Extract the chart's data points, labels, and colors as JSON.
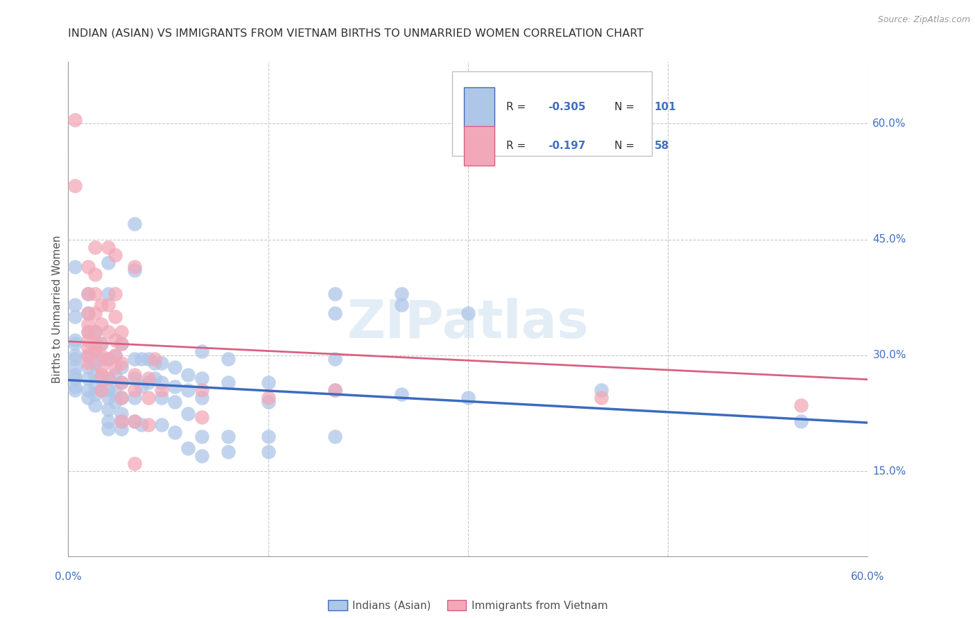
{
  "title": "INDIAN (ASIAN) VS IMMIGRANTS FROM VIETNAM BIRTHS TO UNMARRIED WOMEN CORRELATION CHART",
  "source": "Source: ZipAtlas.com",
  "ylabel": "Births to Unmarried Women",
  "y_ticks_right": [
    "60.0%",
    "45.0%",
    "30.0%",
    "15.0%"
  ],
  "y_tick_vals": [
    0.6,
    0.45,
    0.3,
    0.15
  ],
  "xlim": [
    0.0,
    0.6
  ],
  "ylim": [
    0.04,
    0.68
  ],
  "blue_color": "#aec6e8",
  "blue_line_color": "#3b6bbf",
  "pink_color": "#f2a8b8",
  "pink_line_color": "#d96080",
  "grid_color": "#c8c8c8",
  "title_color": "#303030",
  "axis_label_color": "#4070c0",
  "watermark": "ZIPatlas",
  "R_blue": -0.305,
  "N_blue": 101,
  "R_pink": -0.197,
  "N_pink": 58,
  "blue_intercept": 0.268,
  "blue_slope": -0.092,
  "pink_intercept": 0.318,
  "pink_slope": -0.082,
  "blue_points": [
    [
      0.005,
      0.415
    ],
    [
      0.005,
      0.365
    ],
    [
      0.005,
      0.35
    ],
    [
      0.005,
      0.32
    ],
    [
      0.005,
      0.315
    ],
    [
      0.005,
      0.3
    ],
    [
      0.005,
      0.295
    ],
    [
      0.005,
      0.285
    ],
    [
      0.005,
      0.275
    ],
    [
      0.005,
      0.27
    ],
    [
      0.005,
      0.26
    ],
    [
      0.005,
      0.255
    ],
    [
      0.015,
      0.38
    ],
    [
      0.015,
      0.355
    ],
    [
      0.015,
      0.33
    ],
    [
      0.015,
      0.3
    ],
    [
      0.015,
      0.285
    ],
    [
      0.015,
      0.27
    ],
    [
      0.015,
      0.255
    ],
    [
      0.015,
      0.245
    ],
    [
      0.02,
      0.33
    ],
    [
      0.02,
      0.31
    ],
    [
      0.02,
      0.29
    ],
    [
      0.02,
      0.275
    ],
    [
      0.02,
      0.26
    ],
    [
      0.02,
      0.25
    ],
    [
      0.02,
      0.235
    ],
    [
      0.025,
      0.315
    ],
    [
      0.025,
      0.295
    ],
    [
      0.025,
      0.27
    ],
    [
      0.025,
      0.255
    ],
    [
      0.03,
      0.42
    ],
    [
      0.03,
      0.38
    ],
    [
      0.03,
      0.295
    ],
    [
      0.03,
      0.27
    ],
    [
      0.03,
      0.255
    ],
    [
      0.03,
      0.245
    ],
    [
      0.03,
      0.23
    ],
    [
      0.03,
      0.215
    ],
    [
      0.03,
      0.205
    ],
    [
      0.035,
      0.3
    ],
    [
      0.035,
      0.275
    ],
    [
      0.035,
      0.255
    ],
    [
      0.035,
      0.24
    ],
    [
      0.04,
      0.315
    ],
    [
      0.04,
      0.285
    ],
    [
      0.04,
      0.265
    ],
    [
      0.04,
      0.245
    ],
    [
      0.04,
      0.225
    ],
    [
      0.04,
      0.215
    ],
    [
      0.04,
      0.205
    ],
    [
      0.05,
      0.47
    ],
    [
      0.05,
      0.41
    ],
    [
      0.05,
      0.295
    ],
    [
      0.05,
      0.27
    ],
    [
      0.05,
      0.245
    ],
    [
      0.05,
      0.215
    ],
    [
      0.055,
      0.295
    ],
    [
      0.055,
      0.26
    ],
    [
      0.055,
      0.21
    ],
    [
      0.06,
      0.295
    ],
    [
      0.06,
      0.265
    ],
    [
      0.065,
      0.29
    ],
    [
      0.065,
      0.27
    ],
    [
      0.07,
      0.29
    ],
    [
      0.07,
      0.265
    ],
    [
      0.07,
      0.245
    ],
    [
      0.07,
      0.21
    ],
    [
      0.08,
      0.285
    ],
    [
      0.08,
      0.26
    ],
    [
      0.08,
      0.24
    ],
    [
      0.08,
      0.2
    ],
    [
      0.09,
      0.275
    ],
    [
      0.09,
      0.255
    ],
    [
      0.09,
      0.225
    ],
    [
      0.09,
      0.18
    ],
    [
      0.1,
      0.305
    ],
    [
      0.1,
      0.27
    ],
    [
      0.1,
      0.245
    ],
    [
      0.1,
      0.195
    ],
    [
      0.1,
      0.17
    ],
    [
      0.12,
      0.295
    ],
    [
      0.12,
      0.265
    ],
    [
      0.12,
      0.195
    ],
    [
      0.12,
      0.175
    ],
    [
      0.15,
      0.265
    ],
    [
      0.15,
      0.24
    ],
    [
      0.15,
      0.195
    ],
    [
      0.15,
      0.175
    ],
    [
      0.2,
      0.38
    ],
    [
      0.2,
      0.355
    ],
    [
      0.2,
      0.295
    ],
    [
      0.2,
      0.255
    ],
    [
      0.2,
      0.195
    ],
    [
      0.25,
      0.38
    ],
    [
      0.25,
      0.365
    ],
    [
      0.25,
      0.25
    ],
    [
      0.3,
      0.355
    ],
    [
      0.3,
      0.245
    ],
    [
      0.4,
      0.255
    ],
    [
      0.55,
      0.215
    ]
  ],
  "pink_points": [
    [
      0.005,
      0.605
    ],
    [
      0.005,
      0.52
    ],
    [
      0.015,
      0.415
    ],
    [
      0.015,
      0.38
    ],
    [
      0.015,
      0.355
    ],
    [
      0.015,
      0.34
    ],
    [
      0.015,
      0.33
    ],
    [
      0.015,
      0.32
    ],
    [
      0.015,
      0.31
    ],
    [
      0.015,
      0.3
    ],
    [
      0.015,
      0.29
    ],
    [
      0.02,
      0.44
    ],
    [
      0.02,
      0.405
    ],
    [
      0.02,
      0.38
    ],
    [
      0.02,
      0.355
    ],
    [
      0.02,
      0.33
    ],
    [
      0.02,
      0.315
    ],
    [
      0.02,
      0.305
    ],
    [
      0.025,
      0.365
    ],
    [
      0.025,
      0.34
    ],
    [
      0.025,
      0.315
    ],
    [
      0.025,
      0.3
    ],
    [
      0.025,
      0.285
    ],
    [
      0.025,
      0.275
    ],
    [
      0.025,
      0.255
    ],
    [
      0.03,
      0.44
    ],
    [
      0.03,
      0.365
    ],
    [
      0.03,
      0.33
    ],
    [
      0.03,
      0.295
    ],
    [
      0.03,
      0.27
    ],
    [
      0.035,
      0.43
    ],
    [
      0.035,
      0.38
    ],
    [
      0.035,
      0.35
    ],
    [
      0.035,
      0.32
    ],
    [
      0.035,
      0.3
    ],
    [
      0.035,
      0.285
    ],
    [
      0.04,
      0.33
    ],
    [
      0.04,
      0.315
    ],
    [
      0.04,
      0.29
    ],
    [
      0.04,
      0.265
    ],
    [
      0.04,
      0.245
    ],
    [
      0.04,
      0.215
    ],
    [
      0.05,
      0.415
    ],
    [
      0.05,
      0.275
    ],
    [
      0.05,
      0.255
    ],
    [
      0.05,
      0.215
    ],
    [
      0.05,
      0.16
    ],
    [
      0.06,
      0.27
    ],
    [
      0.06,
      0.245
    ],
    [
      0.06,
      0.21
    ],
    [
      0.065,
      0.295
    ],
    [
      0.07,
      0.255
    ],
    [
      0.1,
      0.255
    ],
    [
      0.1,
      0.22
    ],
    [
      0.15,
      0.245
    ],
    [
      0.2,
      0.255
    ],
    [
      0.4,
      0.245
    ],
    [
      0.55,
      0.235
    ]
  ]
}
